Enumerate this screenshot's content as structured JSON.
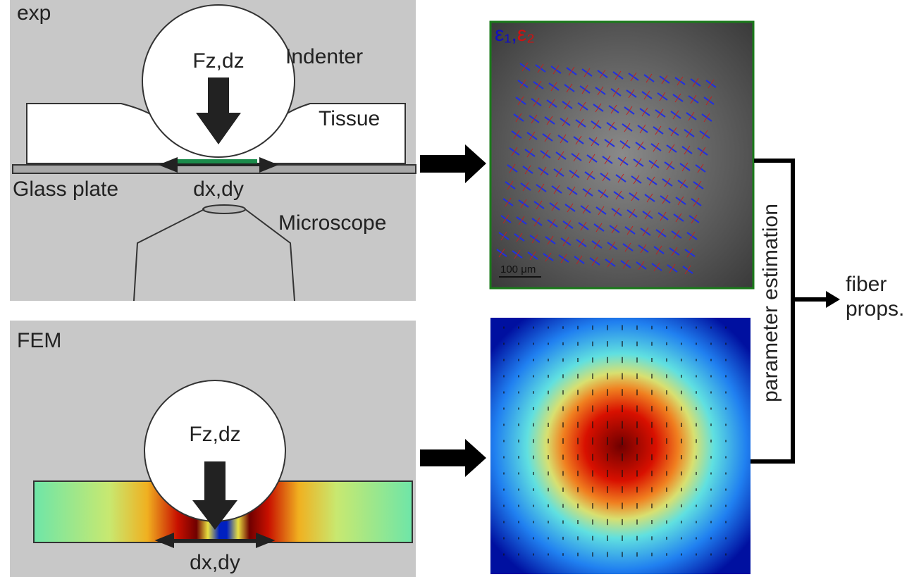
{
  "panels": {
    "exp": {
      "label": "exp",
      "force": "Fz,dz",
      "indenter": "Indenter",
      "tissue": "Tissue",
      "glass": "Glass plate",
      "shift": "dx,dy",
      "microscope": "Microscope"
    },
    "image": {
      "legend": [
        "ε₁",
        ",",
        "ε₂"
      ],
      "scale": "100 μm"
    },
    "fem": {
      "label": "FEM",
      "force": "Fz,dz",
      "shift": "dx,dy"
    }
  },
  "process": {
    "step": "parameter estimation",
    "result": [
      "fiber",
      "props."
    ]
  }
}
